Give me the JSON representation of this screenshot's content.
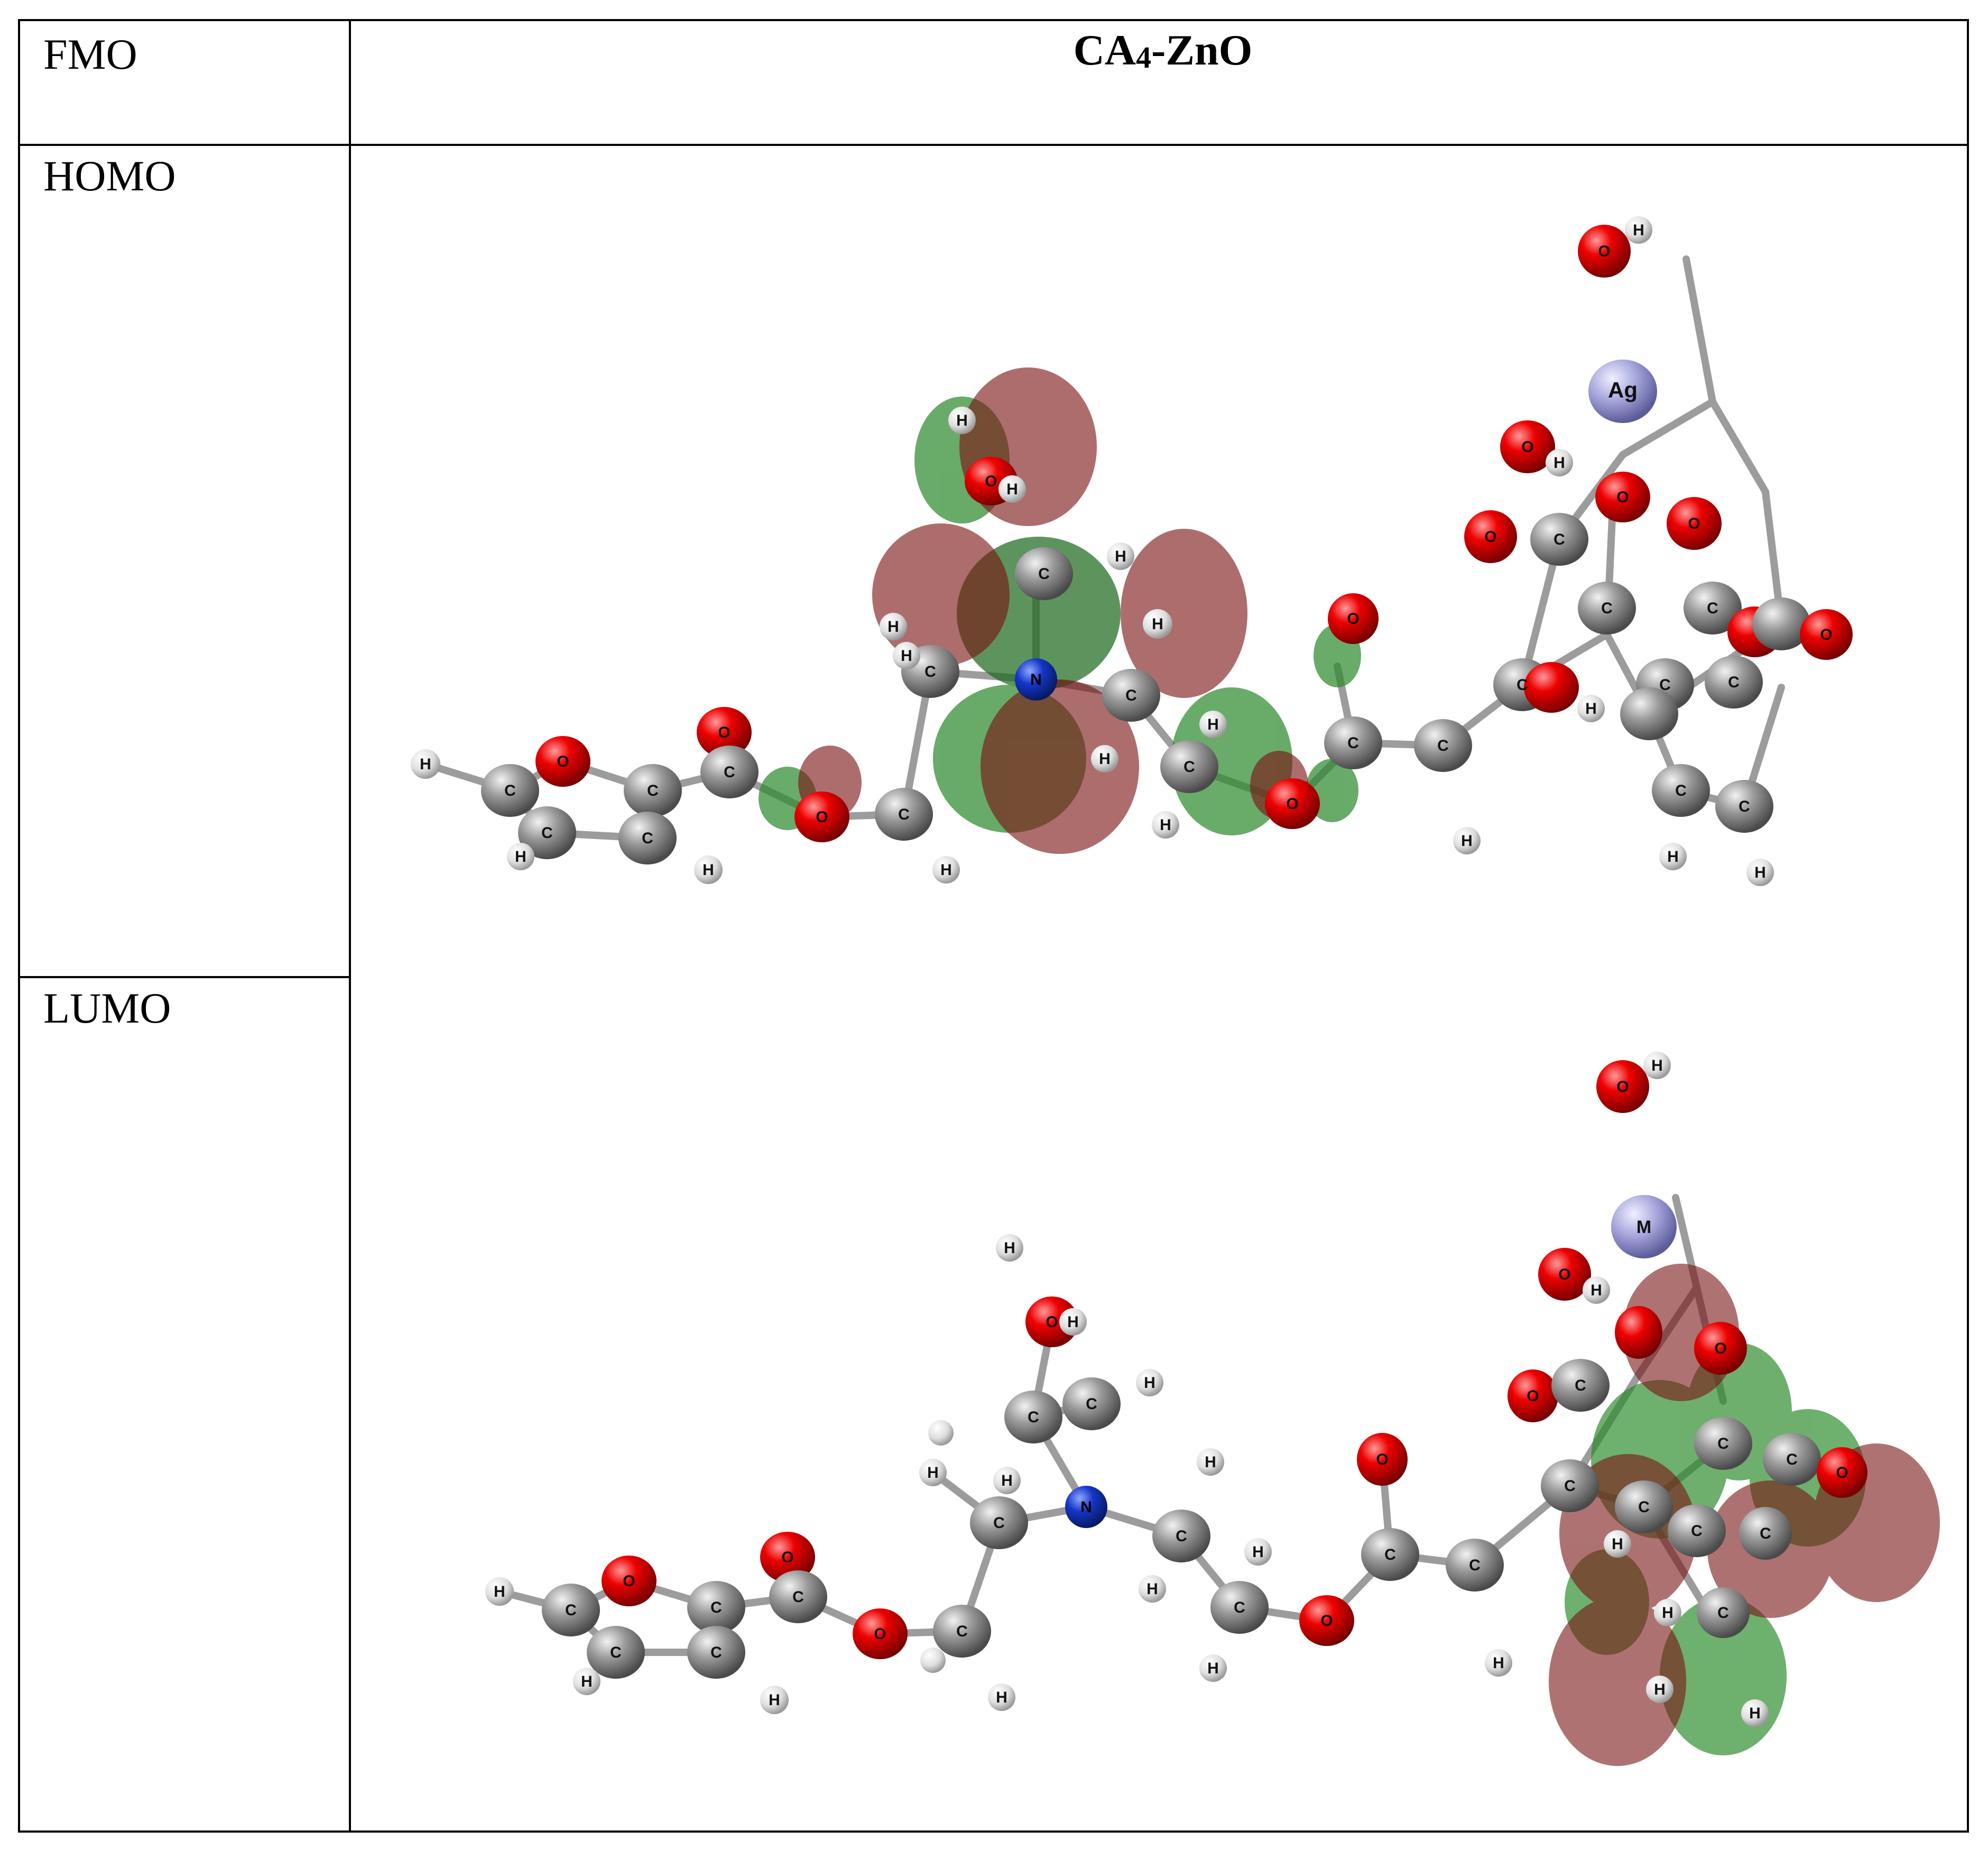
{
  "table": {
    "header_left": "FMO",
    "header_right_main": "CA",
    "header_right_sub": "4",
    "header_right_tail": "-ZnO",
    "row_homo": "HOMO",
    "row_lumo": "LUMO"
  },
  "atoms": {
    "carbon": "C",
    "hydrogen": "H",
    "oxygen": "O",
    "nitrogen": "N",
    "silver": "Ag",
    "metal": "M"
  },
  "colors": {
    "carbon": "#8a8a8a",
    "hydrogen": "#e6e6e6",
    "oxygen": "#e00000",
    "nitrogen": "#1030d0",
    "metal": "#9a9ad8",
    "orbital_positive": "#8b2020",
    "orbital_negative": "#2a8a2a"
  }
}
